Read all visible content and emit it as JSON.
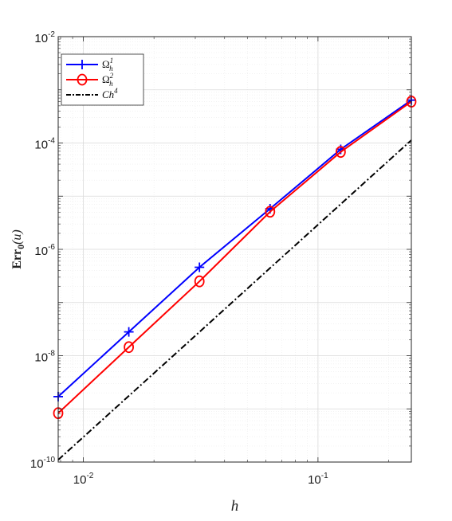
{
  "chart_data": {
    "type": "line",
    "title": "",
    "xlabel": "h",
    "ylabel": {
      "main": "Err",
      "sub": "0",
      "arg": "(u)"
    },
    "xscale": "log",
    "yscale": "log",
    "xlim": [
      0.0078125,
      0.25
    ],
    "ylim": [
      1e-10,
      0.01
    ],
    "grid": true,
    "minor_grid": true,
    "legend_position": "top-left",
    "x_ticks": [
      {
        "value": 0.01,
        "base": "10",
        "exp": "-2"
      },
      {
        "value": 0.1,
        "base": "10",
        "exp": "-1"
      }
    ],
    "y_ticks": [
      {
        "value": 1e-10,
        "base": "10",
        "exp": "-10"
      },
      {
        "value": 1e-08,
        "base": "10",
        "exp": "-8"
      },
      {
        "value": 1e-06,
        "base": "10",
        "exp": "-6"
      },
      {
        "value": 0.0001,
        "base": "10",
        "exp": "-4"
      },
      {
        "value": 0.01,
        "base": "10",
        "exp": "-2"
      }
    ],
    "series": [
      {
        "name": "Ω",
        "sub": "h",
        "sup": "1",
        "color": "#0000ff",
        "marker": "plus",
        "line": "solid",
        "x": [
          0.0078125,
          0.015625,
          0.03125,
          0.0625,
          0.125,
          0.25
        ],
        "y": [
          1.7e-09,
          2.8e-08,
          4.6e-07,
          5.8e-06,
          7.6e-05,
          0.00064
        ]
      },
      {
        "name": "Ω",
        "sub": "h",
        "sup": "2",
        "color": "#ff0000",
        "marker": "circle",
        "line": "solid",
        "x": [
          0.0078125,
          0.015625,
          0.03125,
          0.0625,
          0.125,
          0.25
        ],
        "y": [
          8.3e-10,
          1.45e-08,
          2.5e-07,
          5.1e-06,
          6.8e-05,
          0.0006
        ]
      },
      {
        "name": "Ch",
        "sub": "",
        "sup": "4",
        "color": "#000000",
        "marker": "none",
        "line": "dashdot",
        "x": [
          0.0078125,
          0.25
        ],
        "y": [
          1.1e-10,
          0.000113
        ]
      }
    ]
  }
}
